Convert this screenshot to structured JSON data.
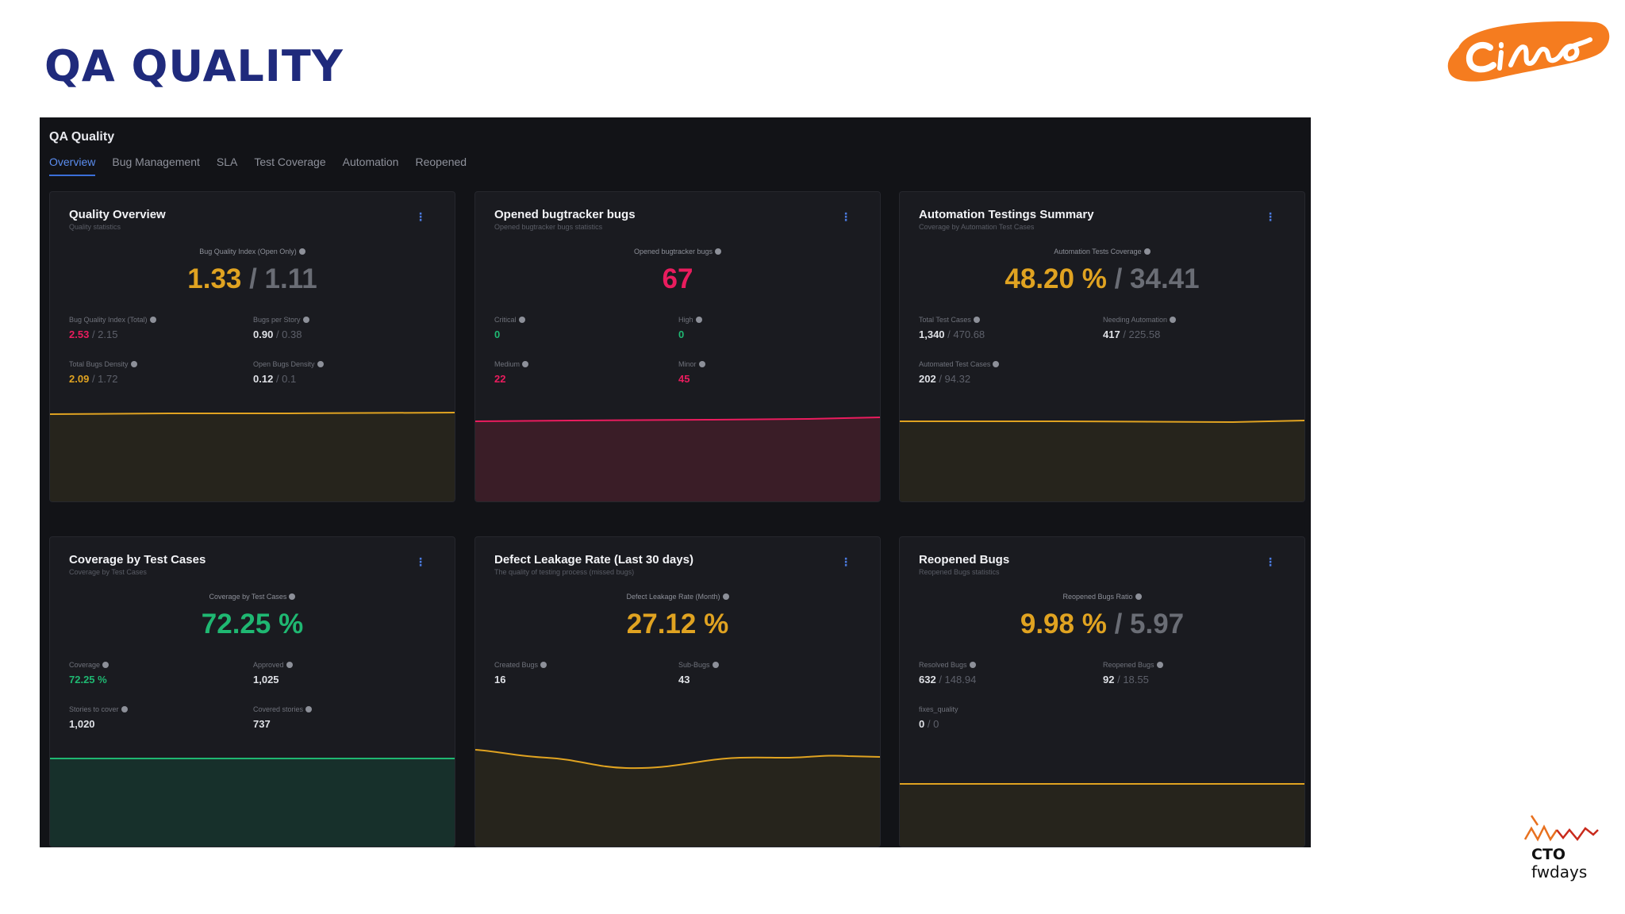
{
  "slide": {
    "title": "QA QUALITY"
  },
  "logos": {
    "silno": "Сільно",
    "cto": "CTO",
    "fwdays": "fwdays"
  },
  "dashboard": {
    "title": "QA Quality",
    "tabs": [
      "Overview",
      "Bug Management",
      "SLA",
      "Test Coverage",
      "Automation",
      "Reopened"
    ],
    "active_tab": "Overview"
  },
  "colors": {
    "yellow": "#e0a321",
    "red": "#ea1c5e",
    "green": "#1fb872",
    "background": "#121317",
    "card": "#1a1b20"
  },
  "cards": {
    "quality": {
      "title": "Quality Overview",
      "subtitle": "Quality statistics",
      "main_label": "Bug Quality Index (Open Only)",
      "main_value": "1.33",
      "main_ref": "/ 1.11",
      "stats": [
        {
          "label": "Bug Quality Index (Total)",
          "value": "2.53",
          "ref": "/ 2.15"
        },
        {
          "label": "Bugs per Story",
          "value": "0.90",
          "ref": "/ 0.38"
        },
        {
          "label": "Total Bugs Density",
          "value": "2.09",
          "ref": "/ 1.72"
        },
        {
          "label": "Open Bugs Density",
          "value": "0.12",
          "ref": "/ 0.1"
        }
      ]
    },
    "bugs": {
      "title": "Opened bugtracker bugs",
      "subtitle": "Opened bugtracker bugs statistics",
      "main_label": "Opened bugtracker bugs",
      "main_value": "67",
      "stats": [
        {
          "label": "Critical",
          "value": "0"
        },
        {
          "label": "High",
          "value": "0"
        },
        {
          "label": "Medium",
          "value": "22"
        },
        {
          "label": "Minor",
          "value": "45"
        }
      ]
    },
    "automation": {
      "title": "Automation Testings Summary",
      "subtitle": "Coverage by Automation Test Cases",
      "main_label": "Automation Tests Coverage",
      "main_value": "48.20 %",
      "main_ref": "/ 34.41",
      "stats": [
        {
          "label": "Total Test Cases",
          "value": "1,340",
          "ref": "/ 470.68"
        },
        {
          "label": "Needing Automation",
          "value": "417",
          "ref": "/ 225.58"
        },
        {
          "label": "Automated Test Cases",
          "value": "202",
          "ref": "/ 94.32"
        }
      ]
    },
    "coverage": {
      "title": "Coverage by Test Cases",
      "subtitle": "Coverage by Test Cases",
      "main_label": "Coverage by Test Cases",
      "main_value": "72.25 %",
      "stats": [
        {
          "label": "Coverage",
          "value": "72.25 %"
        },
        {
          "label": "Approved",
          "value": "1,025"
        },
        {
          "label": "Stories to cover",
          "value": "1,020"
        },
        {
          "label": "Covered stories",
          "value": "737"
        }
      ]
    },
    "leakage": {
      "title": "Defect Leakage Rate (Last 30 days)",
      "subtitle": "The quality of testing process (missed bugs)",
      "main_label": "Defect Leakage Rate (Month)",
      "main_value": "27.12 %",
      "stats": [
        {
          "label": "Created Bugs",
          "value": "16"
        },
        {
          "label": "Sub-Bugs",
          "value": "43"
        }
      ]
    },
    "reopened": {
      "title": "Reopened Bugs",
      "subtitle": "Reopened Bugs statistics",
      "main_label": "Reopened Bugs Ratio",
      "main_value": "9.98 %",
      "main_ref": "/ 5.97",
      "stats": [
        {
          "label": "Resolved Bugs",
          "value": "632",
          "ref": "/ 148.94"
        },
        {
          "label": "Reopened Bugs",
          "value": "92",
          "ref": "/ 18.55"
        },
        {
          "label": "fixes_quality",
          "value": "0",
          "ref": "/ 0"
        }
      ]
    }
  }
}
